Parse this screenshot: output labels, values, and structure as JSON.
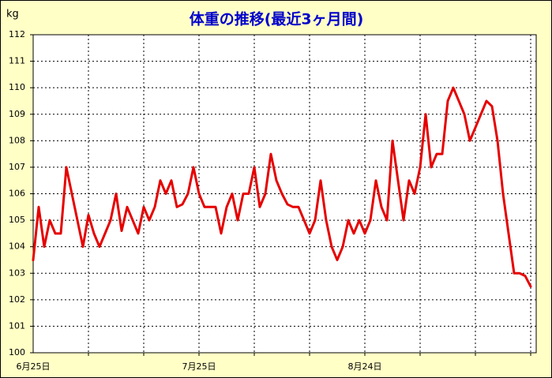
{
  "chart_data": {
    "type": "line",
    "title": "体重の推移(最近3ヶ月間)",
    "y_label": "kg",
    "categories": [
      "6月25日",
      null,
      null,
      null,
      null,
      null,
      null,
      null,
      null,
      null,
      null,
      null,
      null,
      null,
      null,
      null,
      null,
      null,
      null,
      null,
      null,
      null,
      null,
      null,
      null,
      null,
      null,
      null,
      null,
      null,
      "7月25日",
      null,
      null,
      null,
      null,
      null,
      null,
      null,
      null,
      null,
      null,
      null,
      null,
      null,
      null,
      null,
      null,
      null,
      null,
      null,
      null,
      null,
      null,
      null,
      null,
      null,
      null,
      null,
      null,
      null,
      "8月24日",
      null,
      null,
      null,
      null,
      null,
      null,
      null,
      null,
      null,
      null,
      null,
      null,
      null,
      null,
      null,
      null,
      null,
      null,
      null,
      null,
      null,
      null,
      null,
      null,
      null,
      null,
      null,
      null,
      null,
      null
    ],
    "series": [
      {
        "color": "#e60000",
        "values": [
          103.5,
          105.5,
          104.0,
          105.0,
          104.5,
          104.5,
          107.0,
          106.0,
          105.0,
          104.0,
          105.2,
          104.5,
          104.0,
          104.5,
          105.0,
          106.0,
          104.6,
          105.5,
          105.0,
          104.5,
          105.5,
          105.0,
          105.5,
          106.5,
          106.0,
          106.5,
          105.5,
          105.6,
          106.0,
          107.0,
          106.0,
          105.5,
          105.5,
          105.5,
          104.5,
          105.5,
          106.0,
          105.0,
          106.0,
          106.0,
          107.0,
          105.5,
          106.0,
          107.5,
          106.5,
          106.0,
          105.6,
          105.5,
          105.5,
          105.0,
          104.5,
          105.0,
          106.5,
          105.0,
          104.0,
          103.5,
          104.0,
          105.0,
          104.5,
          105.0,
          104.5,
          105.0,
          106.5,
          105.5,
          105.0,
          108.0,
          106.5,
          105.0,
          106.5,
          106.0,
          107.0,
          109.0,
          107.0,
          107.5,
          107.5,
          109.5,
          110.0,
          109.5,
          109.0,
          108.0,
          108.5,
          109.0,
          109.5,
          109.3,
          108.0,
          106.0,
          104.5,
          103.0,
          103.0,
          102.9,
          102.5
        ]
      }
    ],
    "ylim": [
      100,
      112
    ],
    "yticks": [
      100,
      101,
      102,
      103,
      104,
      105,
      106,
      107,
      108,
      109,
      110,
      111,
      112
    ],
    "grid": true
  }
}
